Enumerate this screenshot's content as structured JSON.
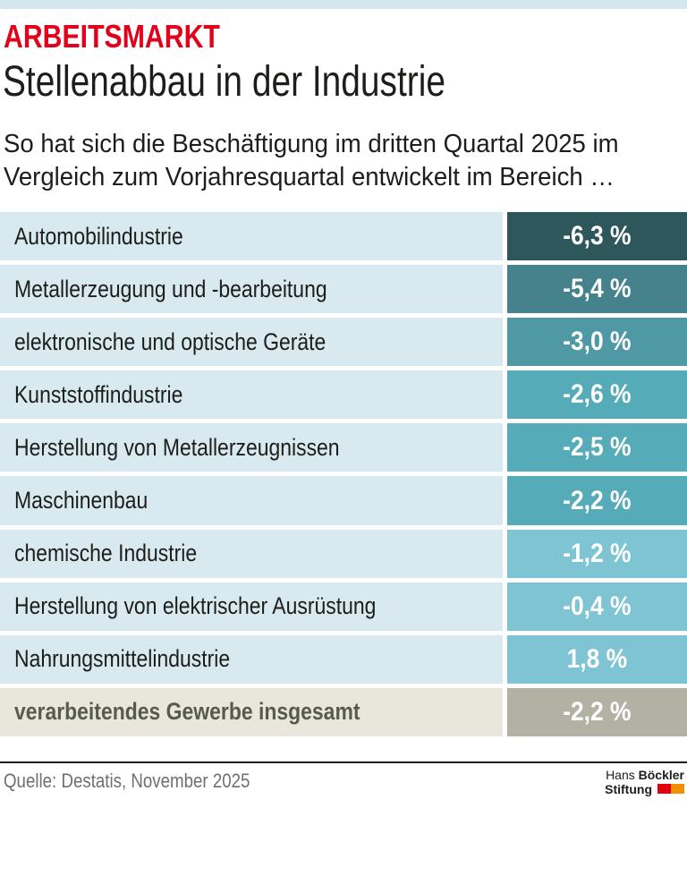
{
  "theme": {
    "accent_red": "#e2001a",
    "strip_blue": "#d3e7ee",
    "text_dark": "#1d1d1b",
    "label_bg_blue": "#d8eaef",
    "source_gray": "#6f6f6e",
    "logo_red": "#e3000f",
    "logo_orange": "#f18f00"
  },
  "header": {
    "kicker": "ARBEITSMARKT",
    "title": "Stellenabbau in der Industrie",
    "subtitle_line1": "So hat sich die Beschäftigung im dritten Quartal 2025 im",
    "subtitle_line2": "Vergleich zum Vorjahresquartal entwickelt im Bereich …"
  },
  "rows": [
    {
      "label": "Automobilindustrie",
      "value": "-6,3 %",
      "box_color": "#2e575c",
      "label_bg": "#d8eaef",
      "label_color": "#1d1d1b",
      "bold": false
    },
    {
      "label": "Metallerzeugung und -bearbeitung",
      "value": "-5,4 %",
      "box_color": "#45828b",
      "label_bg": "#d8eaef",
      "label_color": "#1d1d1b",
      "bold": false
    },
    {
      "label": "elektronische und optische Geräte",
      "value": "-3,0 %",
      "box_color": "#4f99a4",
      "label_bg": "#d8eaef",
      "label_color": "#1d1d1b",
      "bold": false
    },
    {
      "label": "Kunststoffindustrie",
      "value": "-2,6 %",
      "box_color": "#55abb8",
      "label_bg": "#d8eaef",
      "label_color": "#1d1d1b",
      "bold": false
    },
    {
      "label": "Herstellung von Metallerzeugnissen",
      "value": "-2,5 %",
      "box_color": "#55abb8",
      "label_bg": "#d8eaef",
      "label_color": "#1d1d1b",
      "bold": false
    },
    {
      "label": "Maschinenbau",
      "value": "-2,2 %",
      "box_color": "#55abb8",
      "label_bg": "#d8eaef",
      "label_color": "#1d1d1b",
      "bold": false
    },
    {
      "label": "chemische Industrie",
      "value": "-1,2 %",
      "box_color": "#7ec4d3",
      "label_bg": "#d8eaef",
      "label_color": "#1d1d1b",
      "bold": false
    },
    {
      "label": "Herstellung von elektrischer Ausrüstung",
      "value": "-0,4 %",
      "box_color": "#7ec4d3",
      "label_bg": "#d8eaef",
      "label_color": "#1d1d1b",
      "bold": false
    },
    {
      "label": "Nahrungsmittelindustrie",
      "value": "1,8 %",
      "box_color": "#7ec4d3",
      "label_bg": "#d8eaef",
      "label_color": "#1d1d1b",
      "bold": false
    },
    {
      "label": "verarbeitendes Gewerbe insgesamt",
      "value": "-2,2 %",
      "box_color": "#b2b1a4",
      "label_bg": "#e9e7db",
      "label_color": "#575a50",
      "bold": true
    }
  ],
  "footer": {
    "source": "Quelle: Destatis, November 2025",
    "logo": {
      "name_regular": "Hans",
      "name_bold": "Böckler",
      "line2": "Stiftung"
    }
  },
  "chart_data": {
    "type": "table",
    "title": "Stellenabbau in der Industrie",
    "subtitle": "So hat sich die Beschäftigung im dritten Quartal 2025 im Vergleich zum Vorjahresquartal entwickelt im Bereich …",
    "kicker": "ARBEITSMARKT",
    "categories": [
      "Automobilindustrie",
      "Metallerzeugung und -bearbeitung",
      "elektronische und optische Geräte",
      "Kunststoffindustrie",
      "Herstellung von Metallerzeugnissen",
      "Maschinenbau",
      "chemische Industrie",
      "Herstellung von elektrischer Ausrüstung",
      "Nahrungsmittelindustrie",
      "verarbeitendes Gewerbe insgesamt"
    ],
    "values": [
      -6.3,
      -5.4,
      -3.0,
      -2.6,
      -2.5,
      -2.2,
      -1.2,
      -0.4,
      1.8,
      -2.2
    ],
    "unit": "%",
    "source": "Quelle: Destatis, November 2025"
  }
}
